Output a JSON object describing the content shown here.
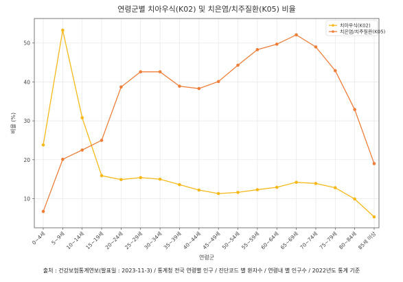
{
  "chart_data": {
    "type": "line",
    "title": "연령군별 치아우식(K02) 및 치은염/치주질환(K05) 비율",
    "xlabel": "연령군",
    "ylabel": "비율 (%)",
    "categories": [
      "0~4세",
      "5~9세",
      "10~14세",
      "15~19세",
      "20~24세",
      "25~29세",
      "30~34세",
      "35~39세",
      "40~44세",
      "45~49세",
      "50~54세",
      "55~59세",
      "60~64세",
      "65~69세",
      "70~74세",
      "75~79세",
      "80~84세",
      "85세 이상"
    ],
    "series": [
      {
        "name": "치아우식(K02)",
        "color": "#f5b817",
        "values": [
          23.8,
          53.3,
          30.8,
          15.9,
          14.9,
          15.4,
          15.0,
          13.6,
          12.2,
          11.3,
          11.6,
          12.3,
          12.9,
          14.2,
          13.9,
          12.8,
          9.9,
          5.3
        ]
      },
      {
        "name": "치은염/치주질환(K05)",
        "color": "#ee7d37",
        "values": [
          6.7,
          20.1,
          22.5,
          25.0,
          38.7,
          42.6,
          42.6,
          38.9,
          38.3,
          40.1,
          44.3,
          48.3,
          49.7,
          52.1,
          49.0,
          42.9,
          32.9,
          19.0
        ]
      }
    ],
    "ylim": [
      2.5,
      56.3
    ],
    "yticks": [
      10,
      20,
      30,
      40,
      50
    ],
    "grid": true,
    "legend_position": "top-right"
  },
  "source_text": "출처 : 건강보험통계연보(발표일 : 2023-11-3) / 통계청 전국 연령별 인구 / 진단코드 별 환자수 / 연령내 별 인구수 / 2022년도 통계 기준"
}
